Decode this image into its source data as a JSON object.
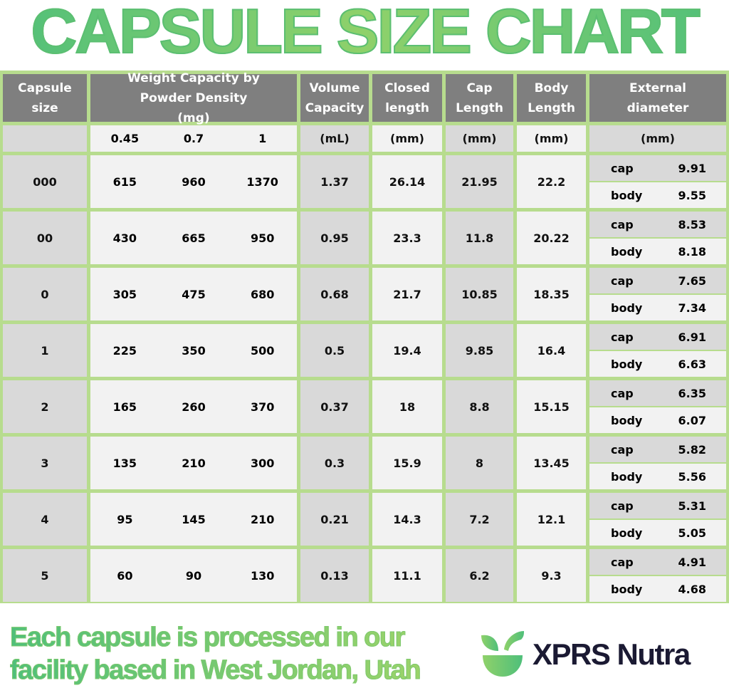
{
  "title": "CAPSULE SIZE CHART",
  "headers": {
    "size": "Capsule size",
    "weight": "Weight Capacity by Powder Density (mg)",
    "volume": "Volume Capacity",
    "closed": "Closed length",
    "cap": "Cap Length",
    "body": "Body Length",
    "ext": "External diameter"
  },
  "units": {
    "size": "",
    "densities": [
      "0.45",
      "0.7",
      "1"
    ],
    "volume": "(mL)",
    "closed": "(mm)",
    "cap": "(mm)",
    "body": "(mm)",
    "ext": "(mm)"
  },
  "labels": {
    "cap": "cap",
    "body": "body"
  },
  "rows": [
    {
      "size": "000",
      "w": [
        "615",
        "960",
        "1370"
      ],
      "volume": "1.37",
      "closed": "26.14",
      "cap": "21.95",
      "body": "22.2",
      "ext_cap": "9.91",
      "ext_body": "9.55"
    },
    {
      "size": "00",
      "w": [
        "430",
        "665",
        "950"
      ],
      "volume": "0.95",
      "closed": "23.3",
      "cap": "11.8",
      "body": "20.22",
      "ext_cap": "8.53",
      "ext_body": "8.18"
    },
    {
      "size": "0",
      "w": [
        "305",
        "475",
        "680"
      ],
      "volume": "0.68",
      "closed": "21.7",
      "cap": "10.85",
      "body": "18.35",
      "ext_cap": "7.65",
      "ext_body": "7.34"
    },
    {
      "size": "1",
      "w": [
        "225",
        "350",
        "500"
      ],
      "volume": "0.5",
      "closed": "19.4",
      "cap": "9.85",
      "body": "16.4",
      "ext_cap": "6.91",
      "ext_body": "6.63"
    },
    {
      "size": "2",
      "w": [
        "165",
        "260",
        "370"
      ],
      "volume": "0.37",
      "closed": "18",
      "cap": "8.8",
      "body": "15.15",
      "ext_cap": "6.35",
      "ext_body": "6.07"
    },
    {
      "size": "3",
      "w": [
        "135",
        "210",
        "300"
      ],
      "volume": "0.3",
      "closed": "15.9",
      "cap": "8",
      "body": "13.45",
      "ext_cap": "5.82",
      "ext_body": "5.56"
    },
    {
      "size": "4",
      "w": [
        "95",
        "145",
        "210"
      ],
      "volume": "0.21",
      "closed": "14.3",
      "cap": "7.2",
      "body": "12.1",
      "ext_cap": "5.31",
      "ext_body": "5.05"
    },
    {
      "size": "5",
      "w": [
        "60",
        "90",
        "130"
      ],
      "volume": "0.13",
      "closed": "11.1",
      "cap": "6.2",
      "body": "9.3",
      "ext_cap": "4.91",
      "ext_body": "4.68"
    }
  ],
  "footer": {
    "line1": "Each capsule is processed in our",
    "line2": "facility based in West Jordan, Utah"
  },
  "logo": {
    "brand": "XPRS Nutra",
    "icon": "leaf-bowl-icon"
  },
  "colors": {
    "header": "#7f7f7f",
    "border": "#b7dc8e",
    "dark_cell": "#d9d9d9",
    "light_cell": "#f2f2f2",
    "brand_text": "#1b1a33",
    "accent_green": "#6cc66f"
  }
}
